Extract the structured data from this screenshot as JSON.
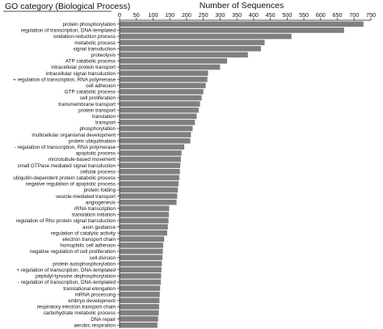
{
  "chart_data": {
    "type": "bar",
    "orientation": "horizontal",
    "title": "",
    "ylabel": "GO category (Biological Process)",
    "xlabel": "Number of Sequences",
    "x_axis_position": "top",
    "xlim": [
      0,
      750
    ],
    "xticks": [
      0,
      50,
      100,
      150,
      200,
      250,
      300,
      350,
      400,
      450,
      500,
      550,
      600,
      650,
      700,
      750
    ],
    "grid": false,
    "legend": "none",
    "bar_color": "#7f7f7f",
    "categories": [
      "protein phosphorylation",
      "regulation of transcription, DNA-templated",
      "oxidation-reduction process",
      "metabolic process",
      "signal transduction",
      "proteolysis",
      "ATP catabolic process",
      "intracellular protein transport",
      "intracellular signal transduction",
      "+ regulation of transcription, RNA polymerase",
      "cell adhesion",
      "GTP catabolic process",
      "cell proliferation",
      "transmembrane transport",
      "protein transport",
      "translation",
      "transport",
      "phosphorylation",
      "multicellular organismal development",
      "protein ubiquitination",
      "- regulation of transcription, RNA polymerase",
      "apoptotic process",
      "microtubule-based movement",
      "small GTPase mediated signal transduction",
      "cellular process",
      "ubiquitin-dependent protein catabolic process",
      "negative regulation of apoptotic process",
      "protein folding",
      "vesicle-mediated transport",
      "angiogenesis",
      "rRNA transcription",
      "translation initiation",
      "regulation of Rho protein signal transduction",
      "axon guidance",
      "regulation of catalytic activity",
      "electron transport chain",
      "homophilic cell adhesion",
      "negative regulation of cell proliferation",
      "cell division",
      "protein autophosphorylation",
      "+ regulation of transcription, DNA-templated",
      "peptidyl-tyrosine dephosphorylation",
      "- regulation of transcription, DNA-templated",
      "translational elongation",
      "mRNA processing",
      "embryo development",
      "respiratory electron transport chain",
      "carbohydrate metabolic process",
      "DNA repair",
      "aerobic respiration"
    ],
    "values": [
      728,
      670,
      513,
      433,
      422,
      383,
      321,
      300,
      264,
      262,
      257,
      250,
      245,
      240,
      236,
      230,
      225,
      218,
      213,
      211,
      193,
      185,
      183,
      181,
      180,
      178,
      176,
      174,
      172,
      170,
      148,
      147,
      146,
      144,
      142,
      133,
      130,
      129,
      128,
      126,
      125,
      124,
      123,
      121,
      120,
      119,
      118,
      117,
      115,
      113
    ]
  }
}
